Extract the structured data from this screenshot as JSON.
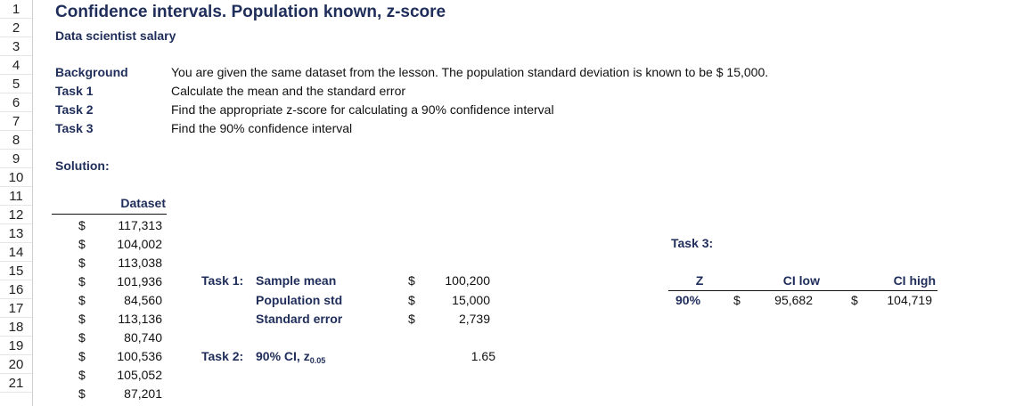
{
  "sheet": {
    "row_numbers": [
      "1",
      "2",
      "3",
      "4",
      "5",
      "6",
      "7",
      "8",
      "9",
      "10",
      "11",
      "12",
      "13",
      "14",
      "15",
      "16",
      "17",
      "18",
      "19",
      "20",
      "21"
    ],
    "title": "Confidence intervals. Population known, z-score",
    "subtitle": "Data scientist salary",
    "tasks": [
      {
        "label": "Background",
        "text": "You are given the same dataset from the lesson. The population standard deviation is known to be $ 15,000."
      },
      {
        "label": "Task 1",
        "text": "Calculate the mean and the standard error"
      },
      {
        "label": "Task 2",
        "text": "Find the appropriate z-score for calculating a 90% confidence interval"
      },
      {
        "label": "Task 3",
        "text": "Find the 90% confidence interval"
      }
    ],
    "solution_label": "Solution:",
    "dataset": {
      "header": "Dataset",
      "currency": "$",
      "values": [
        "117,313",
        "104,002",
        "113,038",
        "101,936",
        "84,560",
        "113,136",
        "80,740",
        "100,536",
        "105,052",
        "87,201"
      ]
    },
    "task1": {
      "label": "Task 1:",
      "rows": [
        {
          "name": "Sample mean",
          "currency": "$",
          "value": "100,200"
        },
        {
          "name": "Population std",
          "currency": "$",
          "value": "15,000"
        },
        {
          "name": "Standard error",
          "currency": "$",
          "value": "2,739"
        }
      ]
    },
    "task2": {
      "label": "Task 2:",
      "name_main": "90% CI, z",
      "name_sub": "0.05",
      "value": "1.65"
    },
    "task3": {
      "label": "Task 3:",
      "headers": {
        "z": "Z",
        "ci_low": "CI low",
        "ci_high": "CI high"
      },
      "row": {
        "z": "90%",
        "low_currency": "$",
        "ci_low": "95,682",
        "high_currency": "$",
        "ci_high": "104,719"
      }
    }
  }
}
